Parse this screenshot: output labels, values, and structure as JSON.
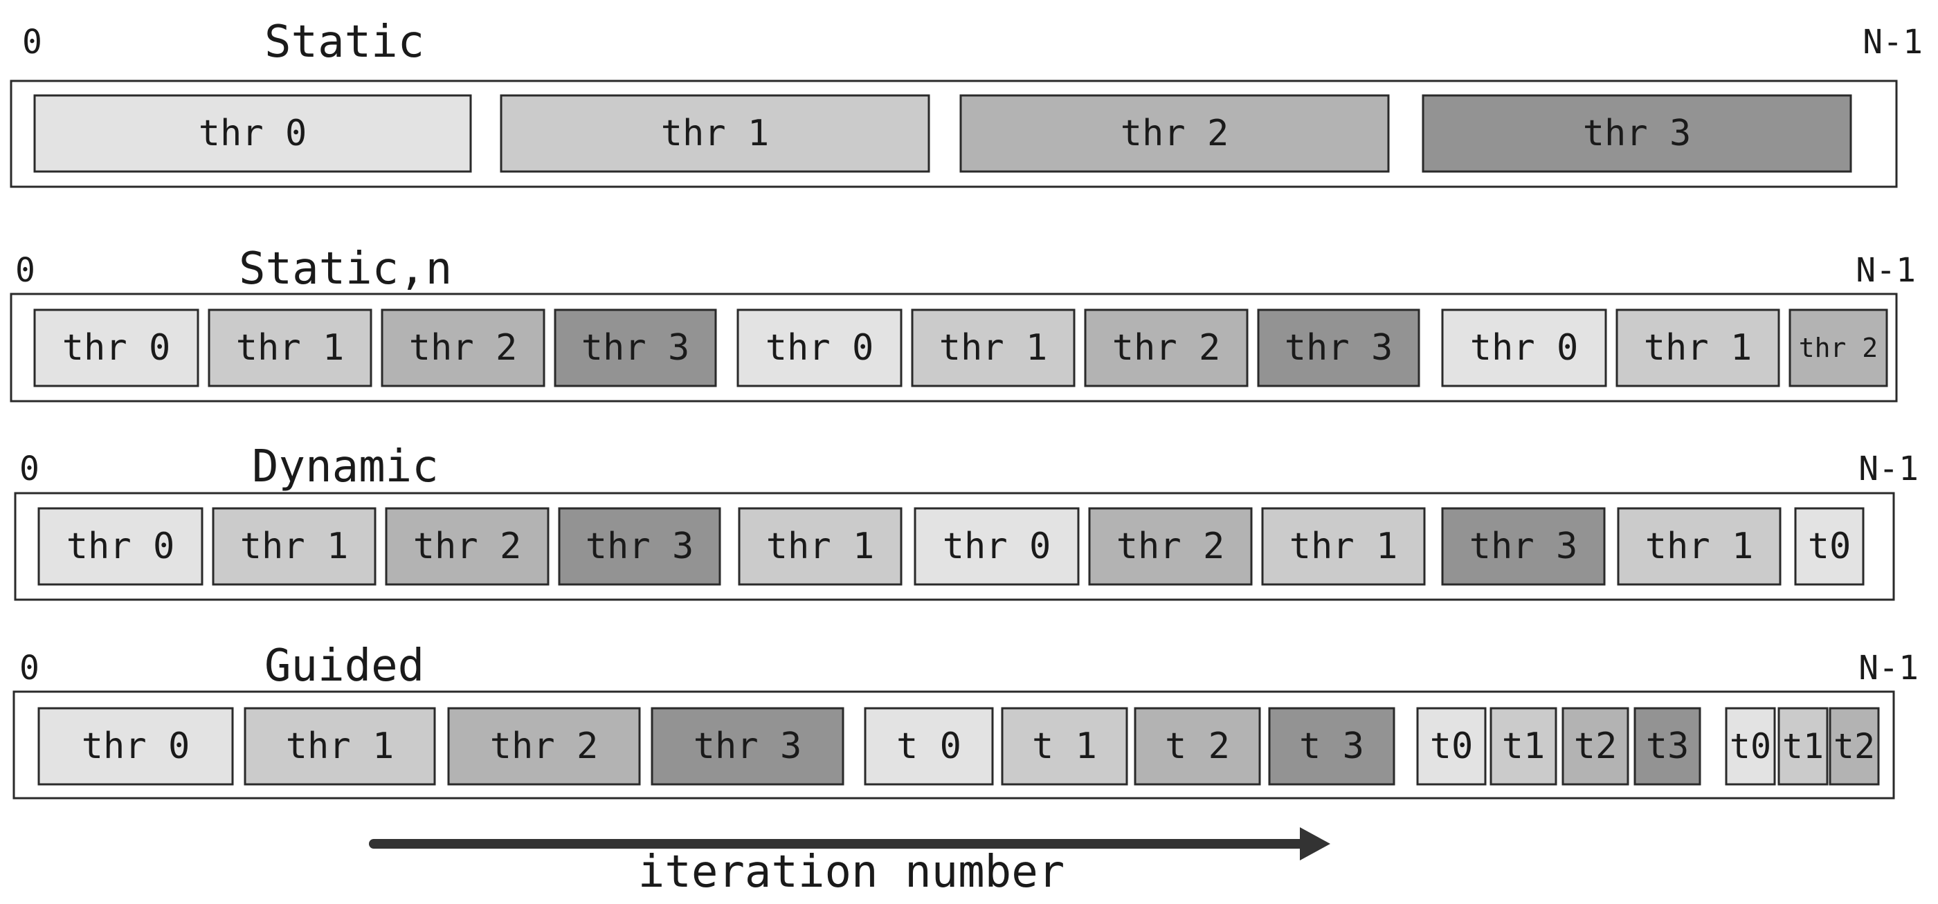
{
  "colors": {
    "thr0": "#e3e3e3",
    "thr1": "#cbcbcb",
    "thr2": "#b3b3b3",
    "thr3": "#939393",
    "stroke": "#2a2a2a",
    "arrow": "#333333"
  },
  "rows": [
    {
      "title": "Static",
      "start_label": "0",
      "end_label": "N-1",
      "blocks": [
        {
          "label": "thr 0",
          "thread": 0
        },
        {
          "label": "thr 1",
          "thread": 1
        },
        {
          "label": "thr 2",
          "thread": 2
        },
        {
          "label": "thr 3",
          "thread": 3
        }
      ]
    },
    {
      "title": "Static,n",
      "start_label": "0",
      "end_label": "N-1",
      "blocks": [
        {
          "label": "thr 0",
          "thread": 0
        },
        {
          "label": "thr 1",
          "thread": 1
        },
        {
          "label": "thr 2",
          "thread": 2
        },
        {
          "label": "thr 3",
          "thread": 3
        },
        {
          "label": "thr 0",
          "thread": 0
        },
        {
          "label": "thr 1",
          "thread": 1
        },
        {
          "label": "thr 2",
          "thread": 2
        },
        {
          "label": "thr 3",
          "thread": 3
        },
        {
          "label": "thr 0",
          "thread": 0
        },
        {
          "label": "thr 1",
          "thread": 1
        },
        {
          "label": "thr 2",
          "thread": 2
        }
      ]
    },
    {
      "title": "Dynamic",
      "start_label": "0",
      "end_label": "N-1",
      "blocks": [
        {
          "label": "thr 0",
          "thread": 0
        },
        {
          "label": "thr 1",
          "thread": 1
        },
        {
          "label": "thr 2",
          "thread": 2
        },
        {
          "label": "thr 3",
          "thread": 3
        },
        {
          "label": "thr 1",
          "thread": 1
        },
        {
          "label": "thr 0",
          "thread": 0
        },
        {
          "label": "thr 2",
          "thread": 2
        },
        {
          "label": "thr 1",
          "thread": 1
        },
        {
          "label": "thr 3",
          "thread": 3
        },
        {
          "label": "thr 1",
          "thread": 1
        },
        {
          "label": "t0",
          "thread": 0
        }
      ]
    },
    {
      "title": "Guided",
      "start_label": "0",
      "end_label": "N-1",
      "blocks": [
        {
          "label": "thr 0",
          "thread": 0
        },
        {
          "label": "thr 1",
          "thread": 1
        },
        {
          "label": "thr 2",
          "thread": 2
        },
        {
          "label": "thr 3",
          "thread": 3
        },
        {
          "label": "t 0",
          "thread": 0
        },
        {
          "label": "t 1",
          "thread": 1
        },
        {
          "label": "t 2",
          "thread": 2
        },
        {
          "label": "t 3",
          "thread": 3
        },
        {
          "label": "t0",
          "thread": 0
        },
        {
          "label": "t1",
          "thread": 1
        },
        {
          "label": "t2",
          "thread": 2
        },
        {
          "label": "t3",
          "thread": 3
        },
        {
          "label": "t0",
          "thread": 0
        },
        {
          "label": "t1",
          "thread": 1
        },
        {
          "label": "t2",
          "thread": 2
        }
      ]
    }
  ],
  "axis_label": "iteration number"
}
